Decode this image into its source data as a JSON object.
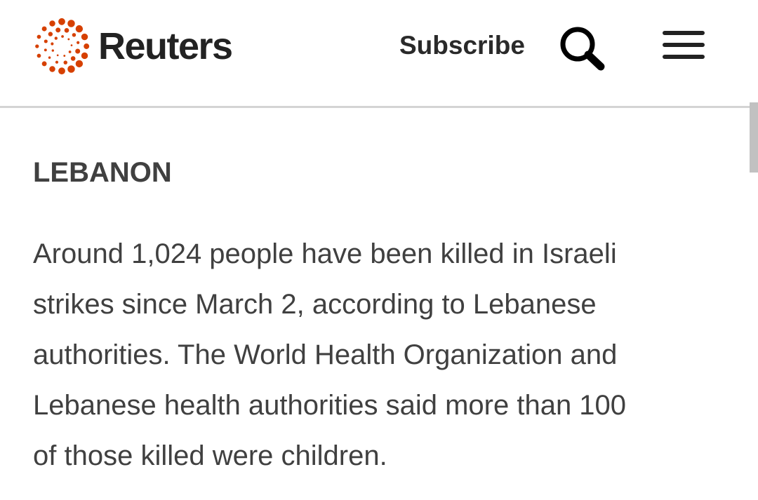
{
  "header": {
    "brand": "Reuters",
    "subscribe_label": "Subscribe",
    "search_icon": "search-icon",
    "menu_icon": "hamburger-menu-icon",
    "brand_color": "#d64000"
  },
  "article": {
    "section": "LEBANON",
    "paragraph_lines": [
      "Around 1,024 people have been killed in Israeli",
      "strikes since March 2, according to Lebanese",
      "authorities. The World Health Organization and",
      "Lebanese health authorities said more than 100",
      "of those killed were children."
    ]
  }
}
